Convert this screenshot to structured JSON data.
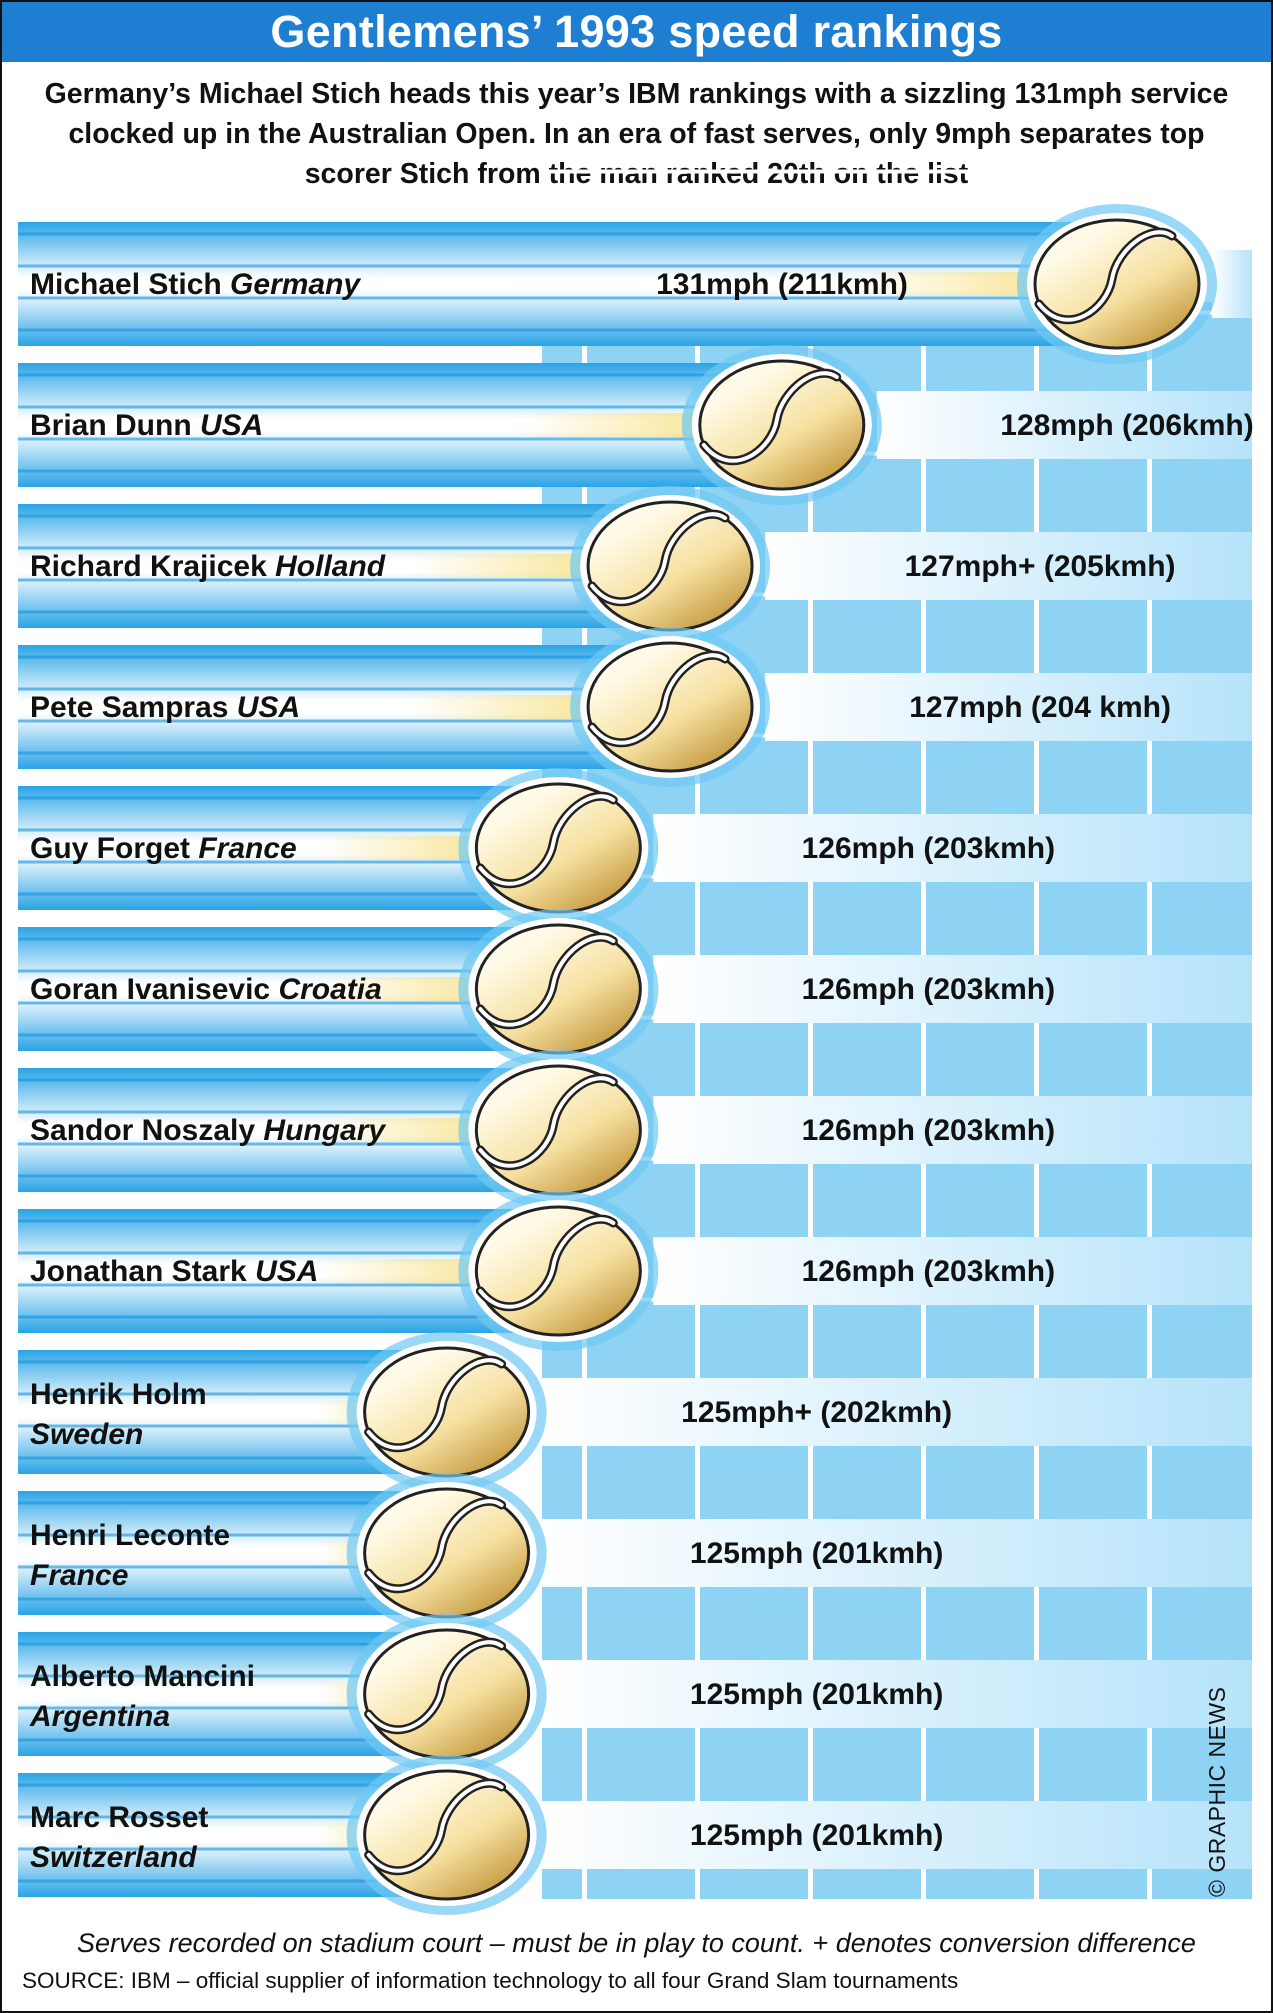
{
  "title": "Gentlemens’ 1993 speed rankings",
  "intro": "Germany’s Michael Stich heads this year’s IBM rankings with a sizzling 131mph service clocked up in the Australian Open. In an era of fast serves, only 9mph separates top scorer Stich from the man ranked 20th on the list",
  "footnote": "Serves recorded on stadium court – must be in play to count. + denotes conversion difference",
  "source": "SOURCE: IBM – official supplier of information technology to all four Grand Slam tournaments",
  "credit": "© GRAPHIC NEWS",
  "colors": {
    "title_bar": "#1e7fd2",
    "court": "#8fd3f4",
    "court_lines": "#ffffff",
    "streak_blue": "#2aa4e6",
    "ball": "#f6e0a0",
    "ball_trail": "#f6dc70"
  },
  "chart_data": {
    "type": "bar",
    "orientation": "horizontal",
    "title": "Gentlemens’ 1993 speed rankings",
    "categories": [
      "Michael Stich",
      "Brian Dunn",
      "Richard Krajicek",
      "Pete Sampras",
      "Guy Forget",
      "Goran Ivanisevic",
      "Sandor Noszaly",
      "Jonathan Stark",
      "Henrik Holm",
      "Henri Leconte",
      "Alberto Mancini",
      "Marc Rosset"
    ],
    "series": [
      {
        "values": [
          131,
          128,
          127,
          127,
          126,
          126,
          126,
          126,
          125,
          125,
          125,
          125
        ]
      }
    ],
    "rows": [
      {
        "name": "Michael Stich",
        "country": "Germany",
        "mph": 131,
        "label": "131mph (211kmh)",
        "wrap": false
      },
      {
        "name": "Brian Dunn",
        "country": "USA",
        "mph": 128,
        "label": "128mph (206kmh)",
        "wrap": false
      },
      {
        "name": "Richard Krajicek",
        "country": "Holland",
        "mph": 127,
        "label": "127mph+ (205kmh)",
        "wrap": false
      },
      {
        "name": "Pete Sampras",
        "country": "USA",
        "mph": 127,
        "label": "127mph (204 kmh)",
        "wrap": false
      },
      {
        "name": "Guy Forget",
        "country": "France",
        "mph": 126,
        "label": "126mph (203kmh)",
        "wrap": false
      },
      {
        "name": "Goran Ivanisevic",
        "country": "Croatia",
        "mph": 126,
        "label": "126mph (203kmh)",
        "wrap": false
      },
      {
        "name": "Sandor Noszaly",
        "country": "Hungary",
        "mph": 126,
        "label": "126mph (203kmh)",
        "wrap": false
      },
      {
        "name": "Jonathan Stark",
        "country": "USA",
        "mph": 126,
        "label": "126mph (203kmh)",
        "wrap": false
      },
      {
        "name": "Henrik Holm",
        "country": "Sweden",
        "mph": 125,
        "label": "125mph+ (202kmh)",
        "wrap": true
      },
      {
        "name": "Henri Leconte",
        "country": "France",
        "mph": 125,
        "label": "125mph (201kmh)",
        "wrap": true
      },
      {
        "name": "Alberto Mancini",
        "country": "Argentina",
        "mph": 125,
        "label": "125mph (201kmh)",
        "wrap": true
      },
      {
        "name": "Marc Rosset",
        "country": "Switzerland",
        "mph": 125,
        "label": "125mph (201kmh)",
        "wrap": true
      }
    ]
  }
}
